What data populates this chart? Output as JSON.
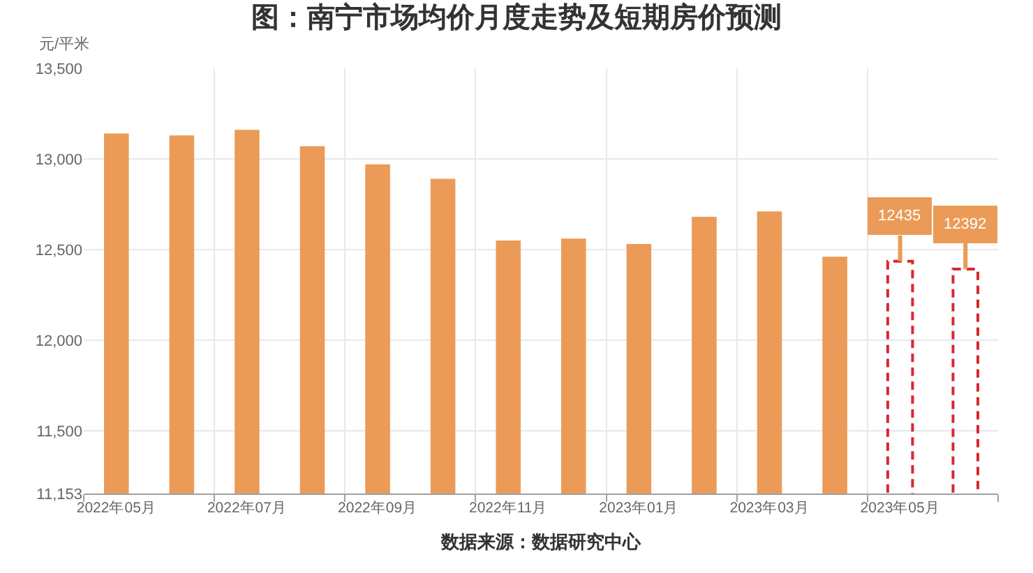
{
  "chart_data": {
    "type": "bar",
    "title": "图：南宁市场均价月度走势及短期房价预测",
    "ylabel": "元/平米",
    "annotations": [
      "数据来源：数据研究中心"
    ],
    "categories": [
      "2022年05月",
      null,
      "2022年07月",
      null,
      "2022年09月",
      null,
      "2022年11月",
      null,
      "2023年01月",
      null,
      "2023年03月",
      null,
      "2023年05月",
      null
    ],
    "series": [
      {
        "color": "#eb9b57",
        "values": [
          13140,
          13130,
          13160,
          13070,
          12970,
          12890,
          12550,
          12560,
          12530,
          12680,
          12710,
          12460,
          null,
          null
        ]
      },
      {
        "color": "#d8282f",
        "line_style": "dashed",
        "values": [
          null,
          null,
          null,
          null,
          null,
          null,
          null,
          null,
          null,
          null,
          null,
          null,
          12435,
          12392
        ],
        "value_labels": [
          null,
          null,
          null,
          null,
          null,
          null,
          null,
          null,
          null,
          null,
          null,
          null,
          "12435",
          "12392"
        ]
      }
    ],
    "ylim": [
      11153,
      13500
    ],
    "yticks": [
      {
        "value": 11153,
        "label": "11,153"
      },
      {
        "value": 11500,
        "label": "11,500"
      },
      {
        "value": 12000,
        "label": "12,000"
      },
      {
        "value": 12500,
        "label": "12,500"
      },
      {
        "value": 13000,
        "label": "13,000"
      },
      {
        "value": 13500,
        "label": "13,500"
      }
    ],
    "grid": true
  }
}
